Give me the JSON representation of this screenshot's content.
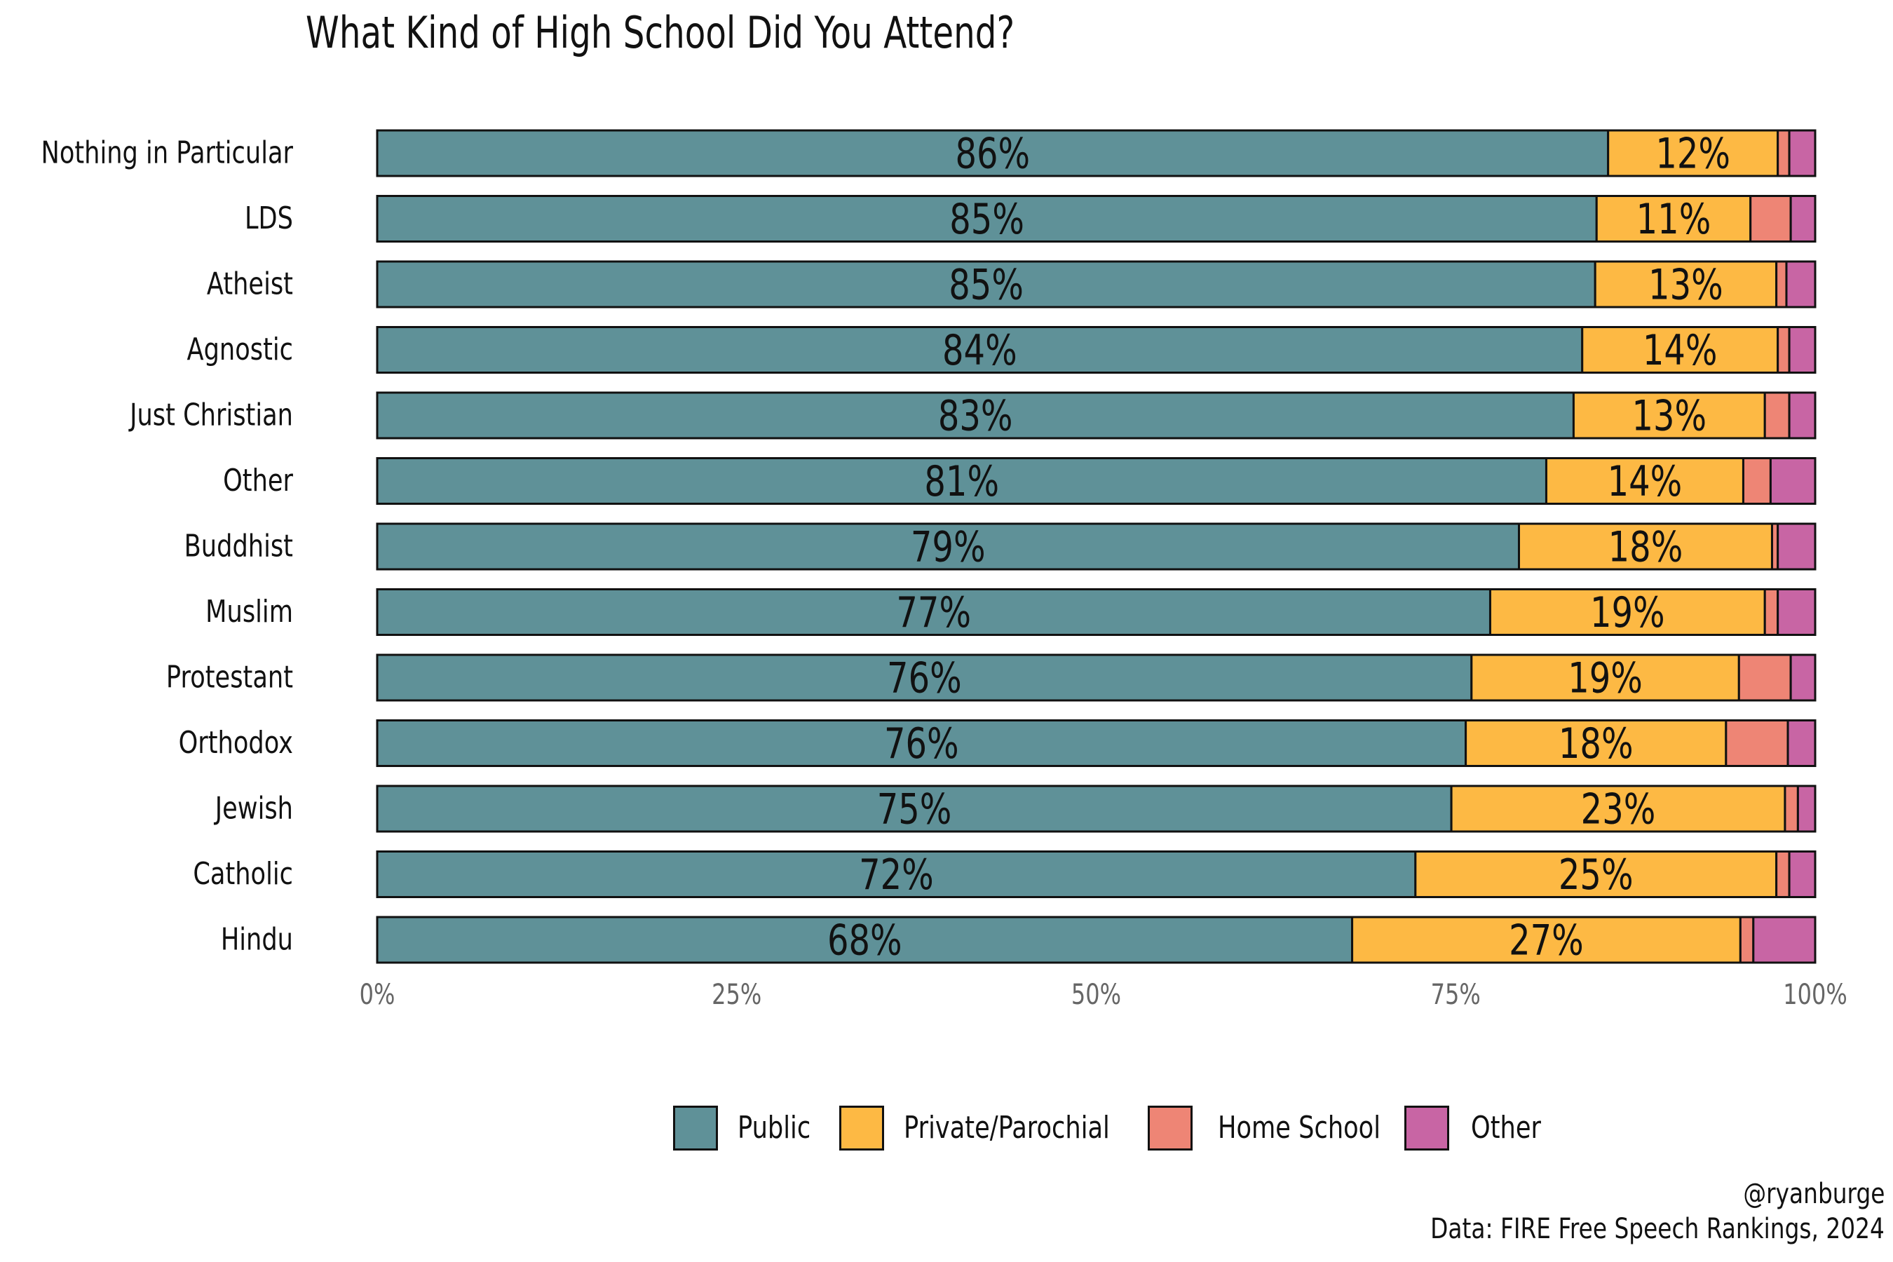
{
  "title": "What Kind of High School Did You Attend?",
  "caption": {
    "author": "@ryanburge",
    "source": "Data: FIRE Free Speech Rankings, 2024"
  },
  "colors": {
    "public": "#5f9198",
    "private": "#fdb944",
    "home": "#ee8575",
    "other": "#c865a4",
    "text": "#111111",
    "axis_text": "#666666"
  },
  "legend": {
    "items": [
      {
        "label": "Public",
        "color": "#5f9198"
      },
      {
        "label": "Private/Parochial",
        "color": "#fdb944"
      },
      {
        "label": "Home School",
        "color": "#ee8575"
      },
      {
        "label": "Other",
        "color": "#c865a4"
      }
    ]
  },
  "chart_data": {
    "type": "bar",
    "orientation": "horizontal",
    "stacked": true,
    "title": "What Kind of High School Did You Attend?",
    "xlabel": "",
    "ylabel": "",
    "xlim": [
      0,
      100
    ],
    "x_ticks": [
      "0%",
      "25%",
      "50%",
      "75%",
      "100%"
    ],
    "categories": [
      "Nothing in Particular",
      "LDS",
      "Atheist",
      "Agnostic",
      "Just Christian",
      "Other",
      "Buddhist",
      "Muslim",
      "Protestant",
      "Orthodox",
      "Jewish",
      "Catholic",
      "Hindu"
    ],
    "series": [
      {
        "name": "Public",
        "values": [
          85.6,
          84.8,
          84.7,
          83.8,
          83.2,
          81.3,
          79.4,
          77.4,
          76.1,
          75.7,
          74.7,
          72.2,
          67.8
        ]
      },
      {
        "name": "Private/Parochial",
        "values": [
          11.8,
          10.7,
          12.6,
          13.6,
          13.3,
          13.7,
          17.6,
          19.1,
          18.6,
          18.1,
          23.2,
          25.1,
          27.0
        ]
      },
      {
        "name": "Home School",
        "values": [
          0.8,
          2.8,
          0.7,
          0.8,
          1.7,
          1.9,
          0.4,
          0.9,
          3.6,
          4.3,
          0.9,
          0.9,
          0.9
        ]
      },
      {
        "name": "Other",
        "values": [
          1.8,
          1.7,
          2.0,
          1.8,
          1.8,
          3.1,
          2.6,
          2.6,
          1.7,
          1.9,
          1.2,
          1.8,
          4.3
        ]
      }
    ],
    "data_labels": {
      "Public": [
        "86%",
        "85%",
        "85%",
        "84%",
        "83%",
        "81%",
        "79%",
        "77%",
        "76%",
        "76%",
        "75%",
        "72%",
        "68%"
      ],
      "Private/Parochial": [
        "12%",
        "11%",
        "13%",
        "14%",
        "13%",
        "14%",
        "18%",
        "19%",
        "19%",
        "18%",
        "23%",
        "25%",
        "27%"
      ]
    },
    "legend_position": "bottom"
  }
}
